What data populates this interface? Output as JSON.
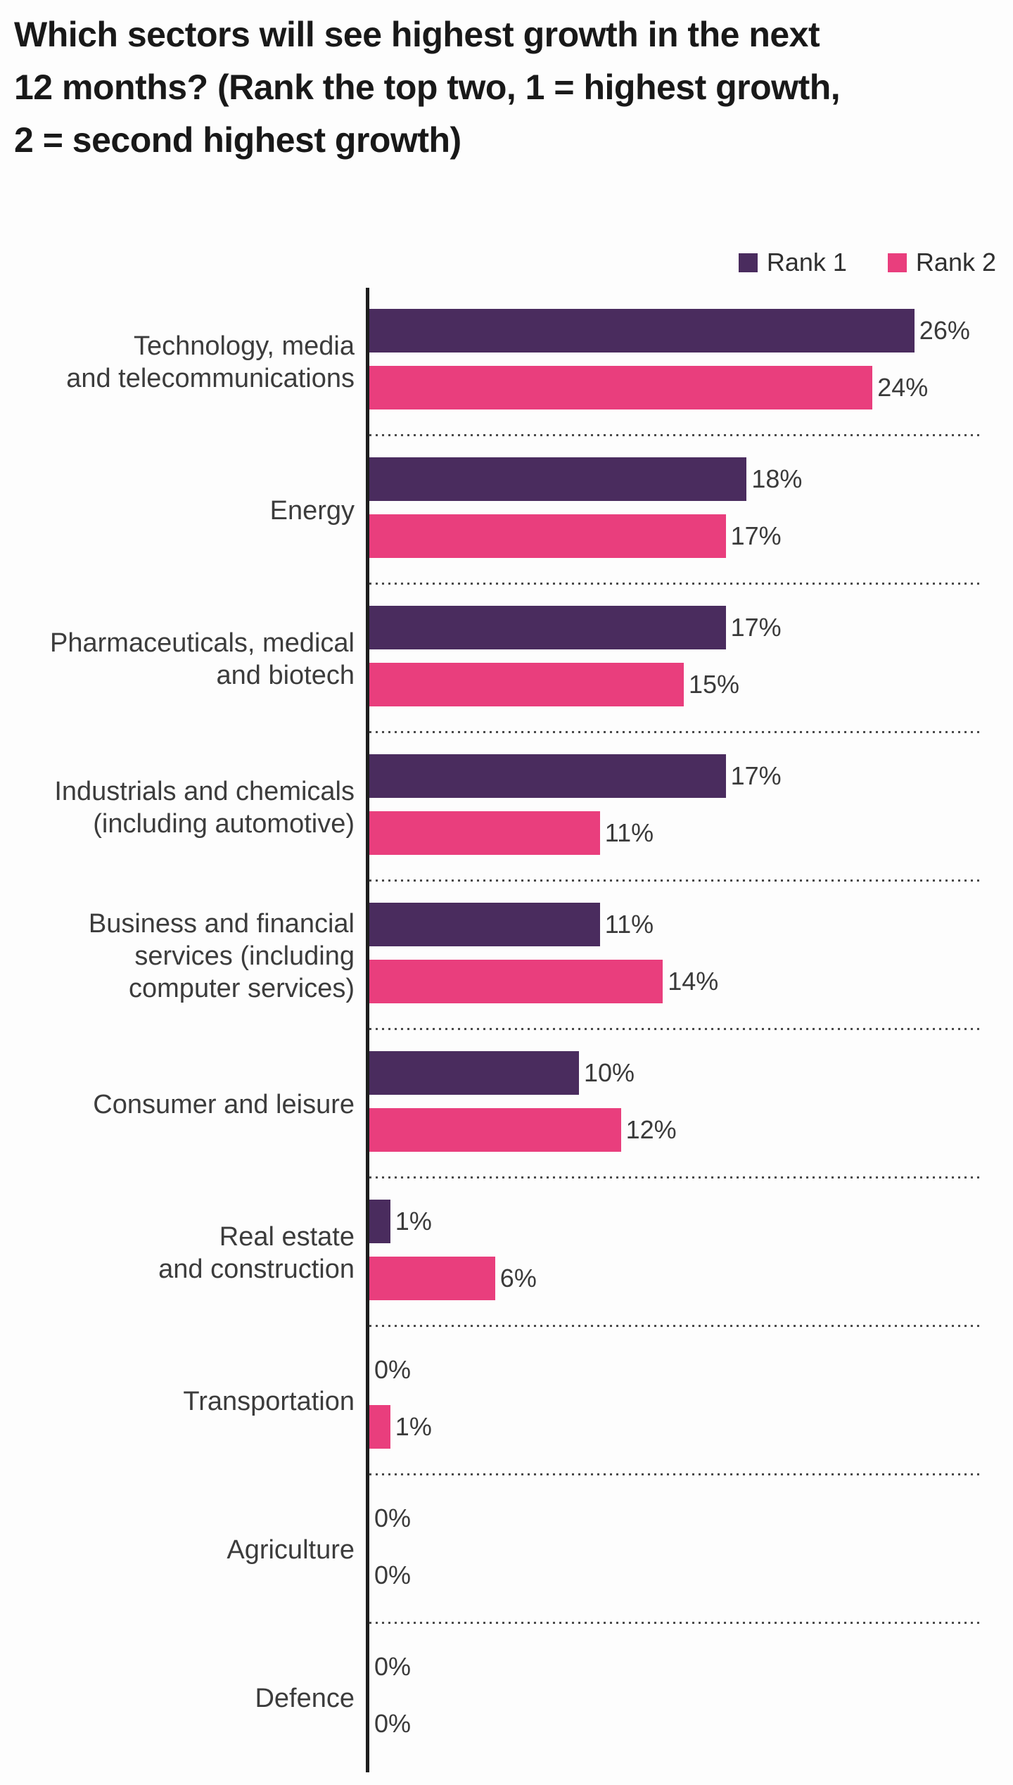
{
  "title": {
    "full": "Which sectors will see highest growth in the next 12 months? (Rank the top two, 1 = highest growth, 2 = second highest growth)",
    "lines": [
      "Which sectors will see highest growth in the next",
      "12 months? (Rank the top two, 1 = highest growth,",
      "2 = second highest growth)"
    ]
  },
  "legend": {
    "items": [
      {
        "label": "Rank 1",
        "color": "#4A2C5E"
      },
      {
        "label": "Rank 2",
        "color": "#E93E7D"
      }
    ]
  },
  "chart_data": {
    "type": "bar",
    "orientation": "horizontal",
    "unit": "%",
    "title": "Which sectors will see highest growth in the next 12 months? (Rank the top two, 1 = highest growth, 2 = second highest growth)",
    "legend_position": "top-right",
    "xlim": [
      0,
      26
    ],
    "grid": false,
    "value_labels": true,
    "categories": [
      "Technology, media and telecommunications",
      "Energy",
      "Pharmaceuticals, medical and biotech",
      "Industrials and chemicals (including automotive)",
      "Business and financial services (including computer services)",
      "Consumer and leisure",
      "Real estate and construction",
      "Transportation",
      "Agriculture",
      "Defence"
    ],
    "category_lines": [
      [
        "Technology, media",
        "and telecommunications"
      ],
      [
        "Energy"
      ],
      [
        "Pharmaceuticals, medical",
        "and biotech"
      ],
      [
        "Industrials and chemicals",
        "(including automotive)"
      ],
      [
        "Business and financial",
        "services (including",
        "computer services)"
      ],
      [
        "Consumer and leisure"
      ],
      [
        "Real estate",
        "and construction"
      ],
      [
        "Transportation"
      ],
      [
        "Agriculture"
      ],
      [
        "Defence"
      ]
    ],
    "series": [
      {
        "name": "Rank 1",
        "color": "#4A2C5E",
        "values": [
          26,
          18,
          17,
          17,
          11,
          10,
          1,
          0,
          0,
          0
        ]
      },
      {
        "name": "Rank 2",
        "color": "#E93E7D",
        "values": [
          24,
          17,
          15,
          11,
          14,
          12,
          6,
          1,
          0,
          0
        ]
      }
    ]
  },
  "colors": {
    "rank1": "#4A2C5E",
    "rank2": "#E93E7D",
    "axis": "#1E1E1E",
    "separator": "#4A4A4A",
    "label_text": "#3C3C3C",
    "title_text": "#191919",
    "background": "#FDFDFD"
  }
}
